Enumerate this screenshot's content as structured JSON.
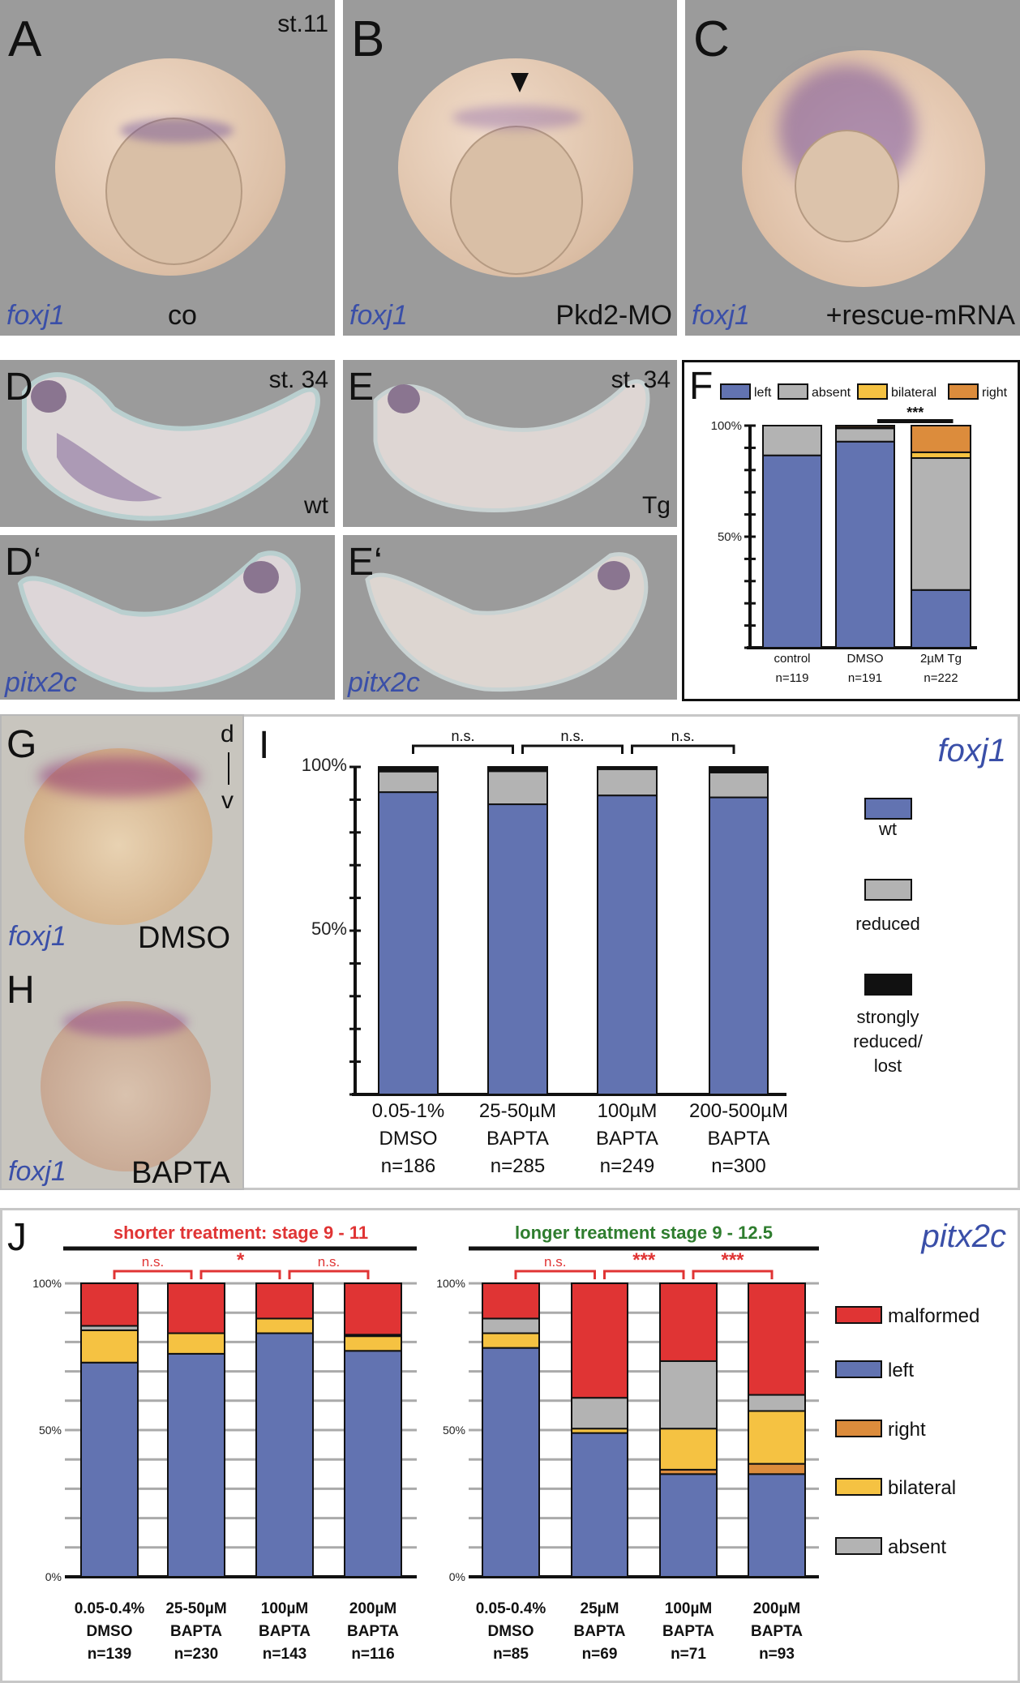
{
  "panels": {
    "A": {
      "letter": "A",
      "stage": "st.11",
      "gene": "foxj1",
      "condition": "co"
    },
    "B": {
      "letter": "B",
      "gene": "foxj1",
      "condition": "Pkd2-MO",
      "marker": "arrowhead-icon"
    },
    "C": {
      "letter": "C",
      "gene": "foxj1",
      "condition": "+rescue-mRNA"
    },
    "D": {
      "letter": "D",
      "stage": "st. 34",
      "condition": "wt"
    },
    "E": {
      "letter": "E",
      "stage": "st. 34",
      "condition": "Tg"
    },
    "D2": {
      "letter": "D‘",
      "gene": "pitx2c"
    },
    "E2": {
      "letter": "E‘",
      "gene": "pitx2c"
    },
    "G": {
      "letter": "G",
      "axis_top": "d",
      "axis_bottom": "v",
      "gene": "foxj1",
      "condition": "DMSO"
    },
    "H": {
      "letter": "H",
      "gene": "foxj1",
      "condition": "BAPTA"
    },
    "F": {
      "letter": "F"
    },
    "I": {
      "letter": "I",
      "gene": "foxj1"
    },
    "J": {
      "letter": "J",
      "gene": "pitx2c"
    }
  },
  "colors": {
    "left": "#6273b1",
    "absent": "#b3b3b3",
    "bilateral": "#f5c242",
    "right": "#dc8c3c",
    "malformed": "#e03434",
    "wt": "#6273b1",
    "reduced": "#b3b3b3",
    "strong": "#111111",
    "gene_text": "#3a4fa8",
    "sig_red": "#e03434",
    "header_red": "#e03434",
    "header_green": "#2e7d2e"
  },
  "chart_data": [
    {
      "id": "F",
      "type": "bar",
      "stacked": true,
      "categories": [
        [
          "control",
          "n=119"
        ],
        [
          "DMSO",
          "n=191"
        ],
        [
          "2µM Tg",
          "n=222"
        ]
      ],
      "yticks": [
        "100%",
        "50%"
      ],
      "ylim": [
        0,
        100
      ],
      "legend": [
        "left",
        "absent",
        "bilateral",
        "right"
      ],
      "legend_position": "top",
      "series": [
        {
          "name": "left",
          "values": [
            86.6,
            92.8,
            26
          ]
        },
        {
          "name": "absent",
          "values": [
            13.4,
            6,
            59.4
          ]
        },
        {
          "name": "bilateral",
          "values": [
            0,
            0.4,
            2.6
          ]
        },
        {
          "name": "right",
          "values": [
            0,
            0.8,
            12
          ]
        }
      ],
      "significance": [
        {
          "between": [
            1,
            2
          ],
          "label": "***"
        }
      ]
    },
    {
      "id": "I",
      "type": "bar",
      "stacked": true,
      "categories": [
        [
          "0.05-1%",
          "DMSO",
          "n=186"
        ],
        [
          "25-50µM",
          "BAPTA",
          "n=285"
        ],
        [
          "100µM",
          "BAPTA",
          "n=249"
        ],
        [
          "200-500µM",
          "BAPTA",
          "n=300"
        ]
      ],
      "yticks": [
        "100%",
        "50%"
      ],
      "ylim": [
        0,
        100
      ],
      "legend": [
        [
          "wt"
        ],
        [
          "reduced"
        ],
        [
          "strongly",
          "reduced/",
          "lost"
        ]
      ],
      "legend_position": "right",
      "series": [
        {
          "name": "wt",
          "values": [
            92.3,
            88.6,
            91.3,
            90.7
          ]
        },
        {
          "name": "reduced",
          "values": [
            6.3,
            10.1,
            8,
            7.6
          ]
        },
        {
          "name": "strongly reduced/lost",
          "values": [
            1.4,
            1.3,
            0.7,
            1.7
          ]
        }
      ],
      "significance": [
        {
          "between": [
            0,
            1
          ],
          "label": "n.s."
        },
        {
          "between": [
            1,
            2
          ],
          "label": "n.s."
        },
        {
          "between": [
            2,
            3
          ],
          "label": "n.s."
        }
      ]
    },
    {
      "id": "J-short",
      "type": "bar",
      "stacked": true,
      "title": "shorter treatment: stage 9 - 11",
      "categories": [
        [
          "0.05-0.4%",
          "DMSO",
          "n=139"
        ],
        [
          "25-50µM",
          "BAPTA",
          "n=230"
        ],
        [
          "100µM",
          "BAPTA",
          "n=143"
        ],
        [
          "200µM",
          "BAPTA",
          "n=116"
        ]
      ],
      "yticks": [
        "100%",
        "50%",
        "0%"
      ],
      "ylim": [
        0,
        100
      ],
      "grid": true,
      "series": [
        {
          "name": "left",
          "values": [
            73,
            76,
            83,
            77
          ]
        },
        {
          "name": "right",
          "values": [
            0,
            0,
            0,
            0
          ]
        },
        {
          "name": "bilateral",
          "values": [
            11,
            7,
            5,
            5
          ]
        },
        {
          "name": "absent",
          "values": [
            1.5,
            0,
            0,
            0.5
          ]
        },
        {
          "name": "malformed",
          "values": [
            14.5,
            17,
            12,
            17.5
          ]
        }
      ],
      "significance": [
        {
          "between": [
            0,
            1
          ],
          "label": "n.s."
        },
        {
          "between": [
            1,
            2
          ],
          "label": "*"
        },
        {
          "between": [
            2,
            3
          ],
          "label": "n.s."
        }
      ]
    },
    {
      "id": "J-long",
      "type": "bar",
      "stacked": true,
      "title": "longer treatment stage 9 - 12.5",
      "categories": [
        [
          "0.05-0.4%",
          "DMSO",
          "n=85"
        ],
        [
          "25µM",
          "BAPTA",
          "n=69"
        ],
        [
          "100µM",
          "BAPTA",
          "n=71"
        ],
        [
          "200µM",
          "BAPTA",
          "n=93"
        ]
      ],
      "yticks": [
        "100%",
        "50%",
        "0%"
      ],
      "ylim": [
        0,
        100
      ],
      "grid": true,
      "legend": [
        "malformed",
        "left",
        "right",
        "bilateral",
        "absent"
      ],
      "legend_position": "right",
      "series": [
        {
          "name": "left",
          "values": [
            78,
            49,
            35,
            35
          ]
        },
        {
          "name": "right",
          "values": [
            0,
            0,
            1.5,
            3.5
          ]
        },
        {
          "name": "bilateral",
          "values": [
            5,
            1.5,
            14,
            18
          ]
        },
        {
          "name": "absent",
          "values": [
            5,
            10.5,
            23,
            5.5
          ]
        },
        {
          "name": "malformed",
          "values": [
            12,
            39,
            26.5,
            38
          ]
        }
      ],
      "significance": [
        {
          "between": [
            0,
            1
          ],
          "label": "n.s."
        },
        {
          "between": [
            1,
            2
          ],
          "label": "***"
        },
        {
          "between": [
            2,
            3
          ],
          "label": "***"
        }
      ]
    }
  ]
}
